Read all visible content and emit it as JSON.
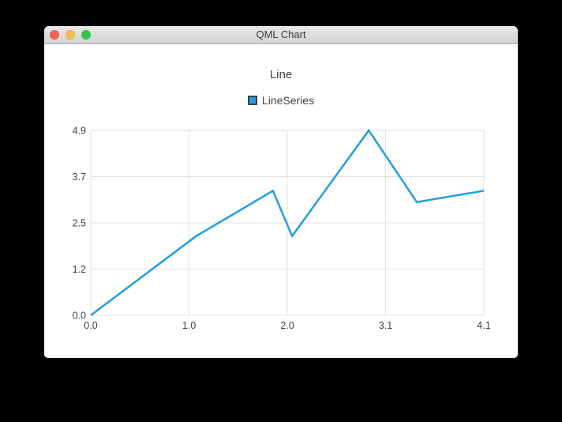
{
  "window": {
    "title": "QML Chart",
    "controls": [
      {
        "name": "close",
        "color": "#f7615a"
      },
      {
        "name": "minimize",
        "color": "#f5bd4f"
      },
      {
        "name": "zoom",
        "color": "#36c64c"
      }
    ]
  },
  "chart_data": {
    "type": "line",
    "title": "Line",
    "legend": {
      "position": "top",
      "entries": [
        "LineSeries"
      ]
    },
    "xlim": [
      0,
      4.1
    ],
    "ylim": [
      0,
      4.9
    ],
    "x_tick_labels": [
      "0.0",
      "1.0",
      "2.0",
      "3.1",
      "4.1"
    ],
    "y_tick_labels": [
      "0.0",
      "1.2",
      "2.5",
      "3.7",
      "4.9"
    ],
    "grid": true,
    "series": [
      {
        "name": "LineSeries",
        "color": "#209fdf",
        "points": [
          [
            0.0,
            0.0
          ],
          [
            1.1,
            2.1
          ],
          [
            1.9,
            3.3
          ],
          [
            2.1,
            2.1
          ],
          [
            2.9,
            4.9
          ],
          [
            3.4,
            3.0
          ],
          [
            4.1,
            3.3
          ]
        ]
      }
    ]
  },
  "colors": {
    "series_line": "#209fdf",
    "legend_marker_fill": "#209fdf",
    "legend_marker_border": "#33424e",
    "grid_line": "#e0e0e0",
    "axis_label": "#3b3e42",
    "chart_text": "#404244",
    "titlebar_text": "#3c3c3c",
    "desktop_background": "#000000",
    "window_background": "#ffffff"
  }
}
